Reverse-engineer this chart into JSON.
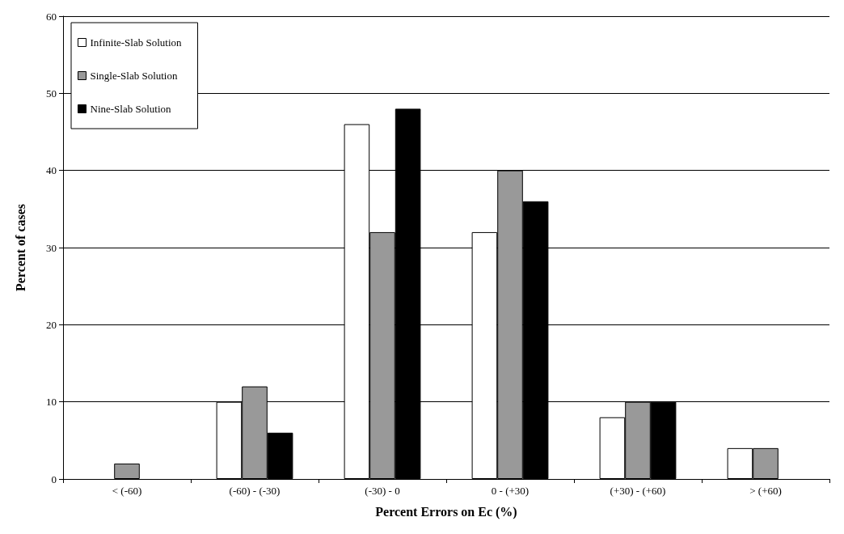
{
  "chart_data": {
    "type": "bar",
    "xlabel": "Percent Errors on Ec (%)",
    "ylabel": "Percent of cases",
    "categories": [
      "< (-60)",
      "(-60) - (-30)",
      "(-30) - 0",
      "0 - (+30)",
      "(+30) - (+60)",
      "> (+60)"
    ],
    "series": [
      {
        "name": "Infinite-Slab Solution",
        "color": "#ffffff",
        "values": [
          0,
          10,
          46,
          32,
          8,
          4
        ]
      },
      {
        "name": "Single-Slab Solution",
        "color": "#999999",
        "values": [
          2,
          12,
          32,
          40,
          10,
          4
        ]
      },
      {
        "name": "Nine-Slab Solution",
        "color": "#000000",
        "values": [
          0,
          6,
          48,
          36,
          10,
          0
        ]
      }
    ],
    "ylim": [
      0,
      60
    ],
    "yticks": [
      0,
      10,
      20,
      30,
      40,
      50,
      60
    ],
    "grid": "y",
    "legend": "top left"
  }
}
